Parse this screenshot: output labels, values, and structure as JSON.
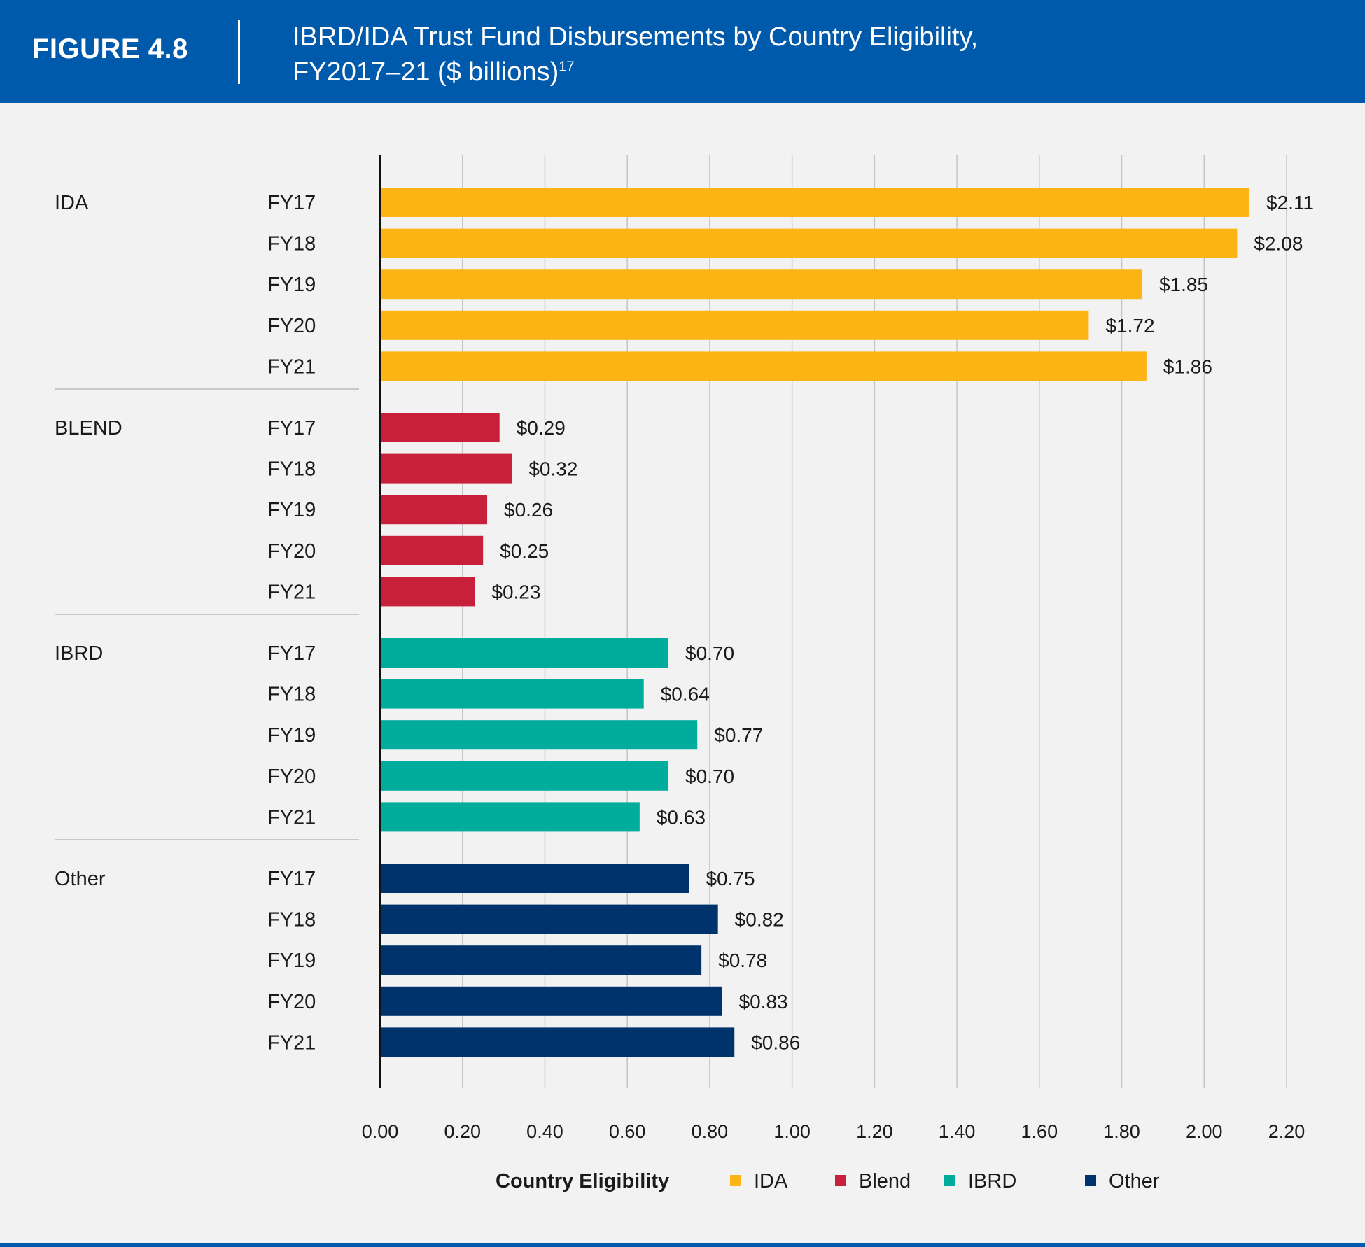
{
  "header": {
    "figure_label": "FIGURE 4.8",
    "title_line1": "IBRD/IDA Trust Fund Disbursements by Country Eligibility,",
    "title_line2": "FY2017–21 ($ billions)",
    "title_footnote": "17"
  },
  "chart_data": {
    "type": "bar",
    "orientation": "horizontal",
    "xlim": [
      0,
      2.2
    ],
    "ticks": [
      "0.00",
      "0.20",
      "0.40",
      "0.60",
      "0.80",
      "1.00",
      "1.20",
      "1.40",
      "1.60",
      "1.80",
      "2.00",
      "2.20"
    ],
    "grid": true,
    "categories": [
      "FY17",
      "FY18",
      "FY19",
      "FY20",
      "FY21"
    ],
    "groups": [
      {
        "name": "IDA",
        "color": "#fdb515",
        "values": [
          2.11,
          2.08,
          1.85,
          1.72,
          1.86
        ],
        "labels": [
          "$2.11",
          "$2.08",
          "$1.85",
          "$1.72",
          "$1.86"
        ]
      },
      {
        "name": "BLEND",
        "color": "#c8203a",
        "values": [
          0.29,
          0.32,
          0.26,
          0.25,
          0.23
        ],
        "labels": [
          "$0.29",
          "$0.32",
          "$0.26",
          "$0.25",
          "$0.23"
        ]
      },
      {
        "name": "IBRD",
        "color": "#00ad9d",
        "values": [
          0.7,
          0.64,
          0.77,
          0.7,
          0.63
        ],
        "labels": [
          "$0.70",
          "$0.64",
          "$0.77",
          "$0.70",
          "$0.63"
        ]
      },
      {
        "name": "Other",
        "color": "#00336b",
        "values": [
          0.75,
          0.82,
          0.78,
          0.83,
          0.86
        ],
        "labels": [
          "$0.75",
          "$0.82",
          "$0.78",
          "$0.83",
          "$0.86"
        ]
      }
    ],
    "legend": {
      "title": "Country Eligibility",
      "placement": "bottom-center",
      "items": [
        {
          "label": "IDA",
          "color": "#fdb515"
        },
        {
          "label": "Blend",
          "color": "#c8203a"
        },
        {
          "label": "IBRD",
          "color": "#00ad9d"
        },
        {
          "label": "Other",
          "color": "#00336b"
        }
      ]
    }
  }
}
